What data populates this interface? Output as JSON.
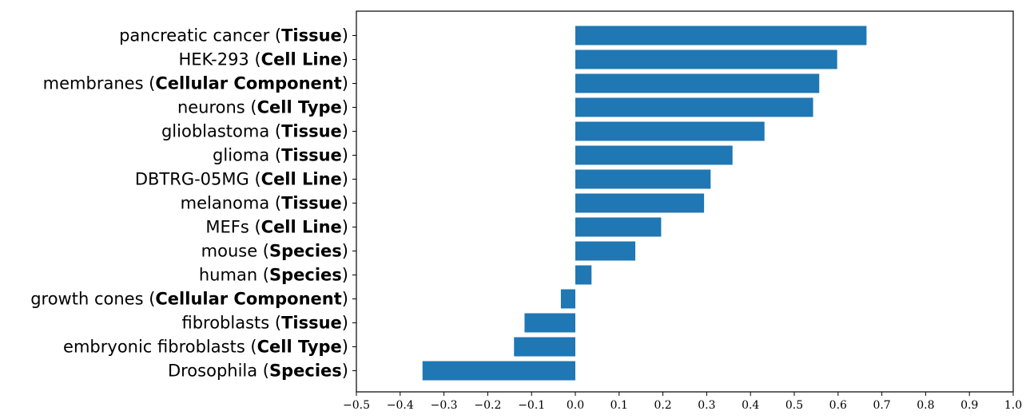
{
  "chart_data": {
    "type": "bar",
    "orientation": "horizontal",
    "title": "",
    "xlabel": "",
    "ylabel": "",
    "xlim": [
      -0.5,
      1.0
    ],
    "xticks": [
      "−0.5",
      "−0.4",
      "−0.3",
      "−0.2",
      "−0.1",
      "0.0",
      "0.1",
      "0.2",
      "0.3",
      "0.4",
      "0.5",
      "0.6",
      "0.7",
      "0.8",
      "0.9",
      "1.0"
    ],
    "bar_color": "#1f77b4",
    "grid": false,
    "categories": [
      {
        "name": "pancreatic cancer",
        "type": "Tissue"
      },
      {
        "name": "HEK-293",
        "type": "Cell Line"
      },
      {
        "name": "membranes",
        "type": "Cellular Component"
      },
      {
        "name": "neurons",
        "type": "Cell Type"
      },
      {
        "name": "glioblastoma",
        "type": "Tissue"
      },
      {
        "name": "glioma",
        "type": "Tissue"
      },
      {
        "name": "DBTRG-05MG",
        "type": "Cell Line"
      },
      {
        "name": "melanoma",
        "type": "Tissue"
      },
      {
        "name": "MEFs",
        "type": "Cell Line"
      },
      {
        "name": "mouse",
        "type": "Species"
      },
      {
        "name": "human",
        "type": "Species"
      },
      {
        "name": "growth cones",
        "type": "Cellular Component"
      },
      {
        "name": "fibroblasts",
        "type": "Tissue"
      },
      {
        "name": "embryonic fibroblasts",
        "type": "Cell Type"
      },
      {
        "name": "Drosophila",
        "type": "Species"
      }
    ],
    "values": [
      0.665,
      0.598,
      0.557,
      0.543,
      0.432,
      0.359,
      0.309,
      0.294,
      0.196,
      0.137,
      0.037,
      -0.033,
      -0.116,
      -0.14,
      -0.349
    ]
  }
}
